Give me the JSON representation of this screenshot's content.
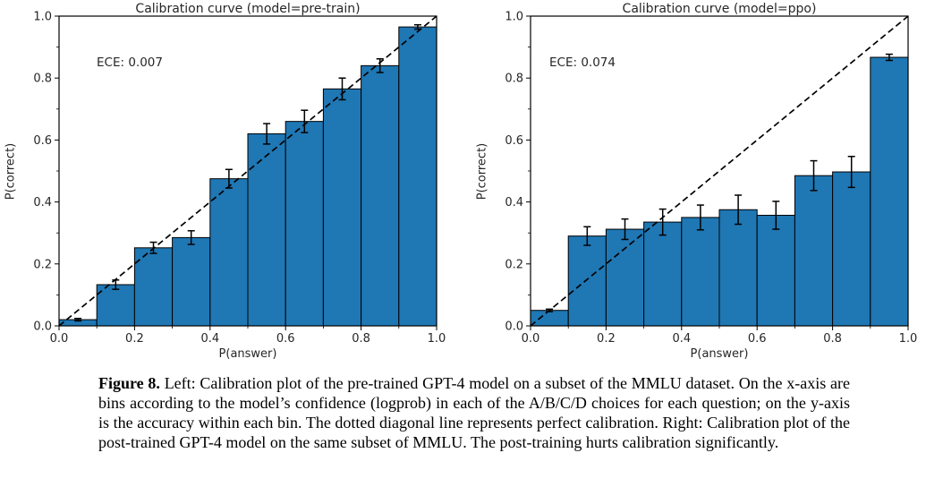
{
  "caption": {
    "label": "Figure 8.",
    "body": "Left: Calibration plot of the pre-trained GPT-4 model on a subset of the MMLU dataset. On the x-axis are bins according to the model’s confidence (logprob) in each of the A/B/C/D choices for each question; on the y-axis is the accuracy within each bin. The dotted diagonal line represents perfect calibration. Right: Calibration plot of the post-trained GPT-4 model on the same subset of MMLU. The post-training hurts calibration significantly."
  },
  "chart_data": [
    {
      "type": "bar",
      "title": "Calibration curve (model=pre-train)",
      "annotation": "ECE: 0.007",
      "xlabel": "P(answer)",
      "ylabel": "P(correct)",
      "xlim": [
        0.0,
        1.0
      ],
      "ylim": [
        0.0,
        1.0
      ],
      "bin_width": 0.1,
      "bin_left_edges": [
        0.0,
        0.1,
        0.2,
        0.3,
        0.4,
        0.5,
        0.6,
        0.7,
        0.8,
        0.9
      ],
      "values": [
        0.02,
        0.133,
        0.252,
        0.285,
        0.475,
        0.62,
        0.66,
        0.765,
        0.84,
        0.965
      ],
      "errors": [
        0.004,
        0.015,
        0.018,
        0.022,
        0.03,
        0.033,
        0.036,
        0.035,
        0.022,
        0.007
      ],
      "major_ticks": [
        0.0,
        0.2,
        0.4,
        0.6,
        0.8,
        1.0
      ],
      "major_tick_labels": [
        "0.0",
        "0.2",
        "0.4",
        "0.6",
        "0.8",
        "1.0"
      ],
      "minor_ticks": [
        0.1,
        0.3,
        0.5,
        0.7,
        0.9
      ],
      "bar_color": "#1f77b4",
      "bar_edge_color": "#000000",
      "diagonal": {
        "style": "dashed",
        "from": [
          0.0,
          0.0
        ],
        "to": [
          1.0,
          1.0
        ],
        "color": "#000000"
      },
      "grid": false,
      "legend": null
    },
    {
      "type": "bar",
      "title": "Calibration curve (model=ppo)",
      "annotation": "ECE: 0.074",
      "xlabel": "P(answer)",
      "ylabel": "P(correct)",
      "xlim": [
        0.0,
        1.0
      ],
      "ylim": [
        0.0,
        1.0
      ],
      "bin_width": 0.1,
      "bin_left_edges": [
        0.0,
        0.1,
        0.2,
        0.3,
        0.4,
        0.5,
        0.6,
        0.7,
        0.8,
        0.9
      ],
      "values": [
        0.05,
        0.29,
        0.312,
        0.335,
        0.35,
        0.375,
        0.357,
        0.485,
        0.497,
        0.867
      ],
      "errors": [
        0.004,
        0.03,
        0.033,
        0.042,
        0.04,
        0.047,
        0.045,
        0.048,
        0.05,
        0.01
      ],
      "major_ticks": [
        0.0,
        0.2,
        0.4,
        0.6,
        0.8,
        1.0
      ],
      "major_tick_labels": [
        "0.0",
        "0.2",
        "0.4",
        "0.6",
        "0.8",
        "1.0"
      ],
      "minor_ticks": [
        0.1,
        0.3,
        0.5,
        0.7,
        0.9
      ],
      "bar_color": "#1f77b4",
      "bar_edge_color": "#000000",
      "diagonal": {
        "style": "dashed",
        "from": [
          0.0,
          0.0
        ],
        "to": [
          1.0,
          1.0
        ],
        "color": "#000000"
      },
      "grid": false,
      "legend": null
    }
  ]
}
